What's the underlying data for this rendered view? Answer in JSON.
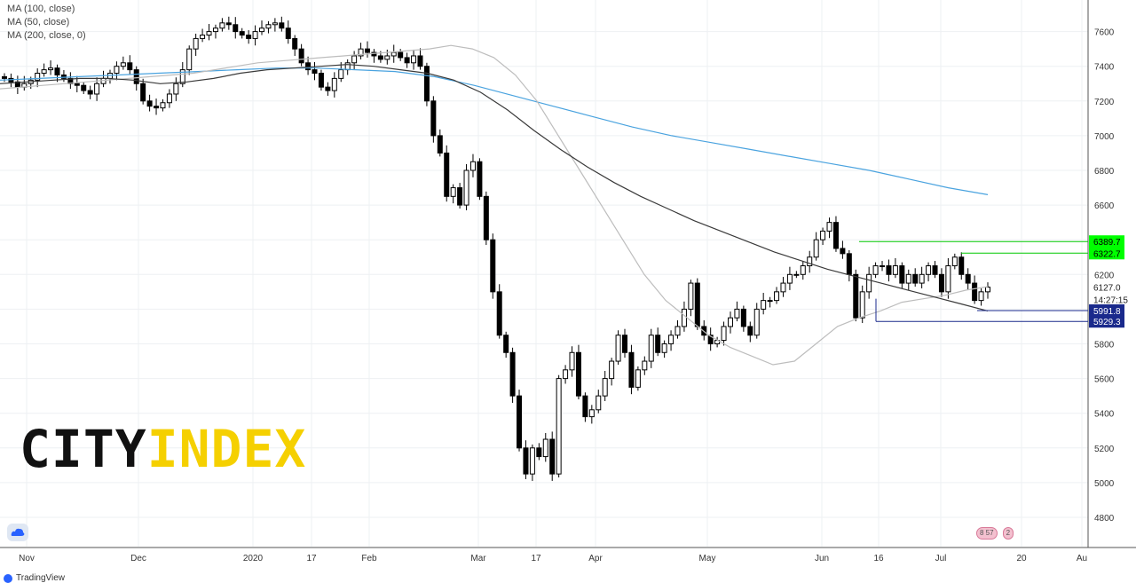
{
  "legend": {
    "ma100": "MA (100, close)",
    "ma50": "MA (50, close)",
    "ma200": "MA (200, close, 0)"
  },
  "logo": {
    "part1": "CITY",
    "part2": "INDEX"
  },
  "footer": {
    "brand": "TradingView"
  },
  "events": {
    "first": "8 57",
    "second": "2"
  },
  "colors": {
    "up": "#000000",
    "down": "#000000",
    "ma100": "#3a3a3a",
    "ma50": "#bdbdbd",
    "ma200": "#4aa3df",
    "resistance": "#00c800",
    "support": "#1a2a8c",
    "price_tag": "#ffffff"
  },
  "chart_data": {
    "type": "candlestick",
    "title": "",
    "xlabel": "",
    "ylabel": "",
    "x_ticks": [
      "Nov",
      "Dec",
      "2020",
      "17",
      "Feb",
      "Mar",
      "17",
      "Apr",
      "May",
      "Jun",
      "16",
      "Jul",
      "20",
      "Au"
    ],
    "y_ticks": [
      4800,
      5000,
      5200,
      5400,
      5600,
      5800,
      6000,
      6200,
      6400,
      6600,
      6800,
      7000,
      7200,
      7400,
      7600
    ],
    "ylim": [
      4650,
      7750
    ],
    "grid": true,
    "price_labels": [
      {
        "text": "6389.7",
        "style": "green"
      },
      {
        "text": "6322.7",
        "style": "green"
      },
      {
        "text": "6127.0",
        "style": "plain"
      },
      {
        "text": "14:27:15",
        "style": "plain"
      },
      {
        "text": "5991.8",
        "style": "blue"
      },
      {
        "text": "5929.3",
        "style": "blue"
      }
    ],
    "closes": [
      7330,
      7310,
      7280,
      7300,
      7320,
      7360,
      7380,
      7390,
      7350,
      7330,
      7300,
      7290,
      7260,
      7240,
      7300,
      7330,
      7360,
      7400,
      7420,
      7380,
      7300,
      7200,
      7170,
      7160,
      7190,
      7240,
      7300,
      7380,
      7500,
      7560,
      7580,
      7600,
      7620,
      7650,
      7640,
      7600,
      7580,
      7560,
      7600,
      7620,
      7640,
      7650,
      7620,
      7560,
      7500,
      7420,
      7380,
      7360,
      7280,
      7260,
      7330,
      7380,
      7420,
      7460,
      7500,
      7480,
      7460,
      7440,
      7460,
      7480,
      7450,
      7420,
      7460,
      7400,
      7200,
      7000,
      6900,
      6650,
      6700,
      6600,
      6800,
      6850,
      6650,
      6400,
      6100,
      5850,
      5750,
      5500,
      5200,
      5050,
      5200,
      5150,
      5250,
      5050,
      5600,
      5650,
      5750,
      5500,
      5380,
      5420,
      5500,
      5600,
      5700,
      5850,
      5750,
      5550,
      5650,
      5700,
      5850,
      5750,
      5800,
      5850,
      5900,
      6000,
      6150,
      5900,
      5850,
      5800,
      5820,
      5900,
      5950,
      6000,
      5900,
      5850,
      6000,
      6050,
      6050,
      6100,
      6150,
      6200,
      6200,
      6250,
      6300,
      6400,
      6450,
      6500,
      6350,
      6320,
      6200,
      5950,
      6100,
      6200,
      6250,
      6250,
      6200,
      6250,
      6150,
      6200,
      6150,
      6200,
      6250,
      6200,
      6100,
      6250,
      6300,
      6200,
      6150,
      6050,
      6100,
      6127
    ],
    "ma50": [
      7270,
      7280,
      7290,
      7300,
      7310,
      7320,
      7330,
      7340,
      7350,
      7360,
      7380,
      7400,
      7420,
      7430,
      7440,
      7450,
      7460,
      7470,
      7480,
      7490,
      7500,
      7520,
      7500,
      7450,
      7350,
      7200,
      7000,
      6800,
      6600,
      6400,
      6200,
      6050,
      5950,
      5850,
      5780,
      5730,
      5680,
      5700,
      5800,
      5900,
      5950,
      5990,
      6040,
      6060,
      6080,
      6110,
      6130
    ],
    "ma100": [
      7300,
      7310,
      7320,
      7330,
      7330,
      7320,
      7300,
      7310,
      7330,
      7360,
      7380,
      7390,
      7400,
      7410,
      7400,
      7380,
      7360,
      7320,
      7250,
      7150,
      7030,
      6920,
      6820,
      6730,
      6650,
      6580,
      6510,
      6450,
      6390,
      6330,
      6280,
      6230,
      6190,
      6150,
      6110,
      6070,
      6030,
      5990
    ],
    "ma200": [
      7320,
      7330,
      7340,
      7350,
      7360,
      7370,
      7380,
      7390,
      7390,
      7380,
      7370,
      7340,
      7290,
      7230,
      7170,
      7110,
      7050,
      7000,
      6960,
      6920,
      6880,
      6840,
      6800,
      6750,
      6700,
      6660
    ]
  }
}
